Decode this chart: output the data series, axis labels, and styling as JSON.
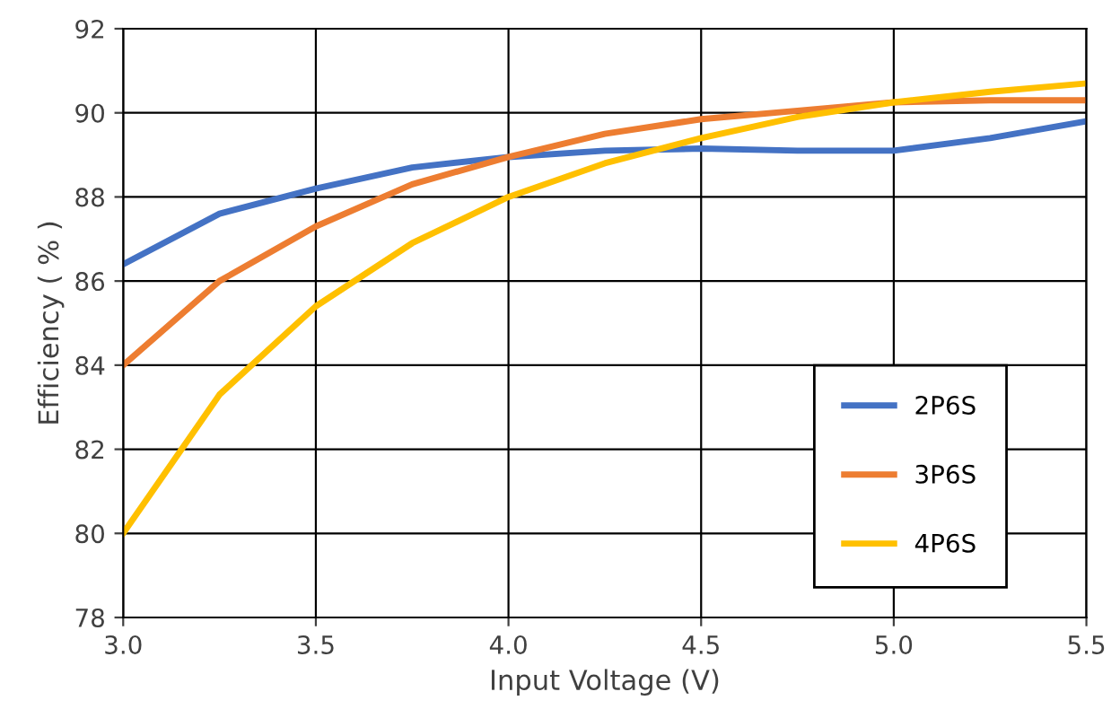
{
  "chart_data": {
    "type": "line",
    "xlabel": "Input Voltage (V)",
    "ylabel": "Efficiency ( % )",
    "x": [
      3.0,
      3.25,
      3.5,
      3.75,
      4.0,
      4.25,
      4.5,
      4.75,
      5.0,
      5.25,
      5.5
    ],
    "series": [
      {
        "name": "2P6S",
        "color": "#4472c4",
        "values": [
          86.4,
          87.6,
          88.2,
          88.7,
          88.95,
          89.1,
          89.15,
          89.1,
          89.1,
          89.4,
          89.8
        ]
      },
      {
        "name": "3P6S",
        "color": "#ed7d31",
        "values": [
          84.0,
          86.0,
          87.3,
          88.3,
          88.95,
          89.5,
          89.85,
          90.05,
          90.25,
          90.3,
          90.3
        ]
      },
      {
        "name": "4P6S",
        "color": "#ffc000",
        "values": [
          80.0,
          83.3,
          85.4,
          86.9,
          88.0,
          88.8,
          89.4,
          89.9,
          90.25,
          90.5,
          90.7
        ]
      }
    ],
    "xlim": [
      3.0,
      5.5
    ],
    "xticks": [
      {
        "value": 3.0,
        "label": "3.0"
      },
      {
        "value": 3.5,
        "label": "3.5"
      },
      {
        "value": 4.0,
        "label": "4.0"
      },
      {
        "value": 4.5,
        "label": "4.5"
      },
      {
        "value": 5.0,
        "label": "5.0"
      },
      {
        "value": 5.5,
        "label": "5.5"
      }
    ],
    "ylim": [
      78,
      92
    ],
    "yticks": [
      78,
      80,
      82,
      84,
      86,
      88,
      90,
      92
    ],
    "grid": true,
    "legend": "bottom right",
    "marker": "none",
    "line_style": "solid"
  }
}
